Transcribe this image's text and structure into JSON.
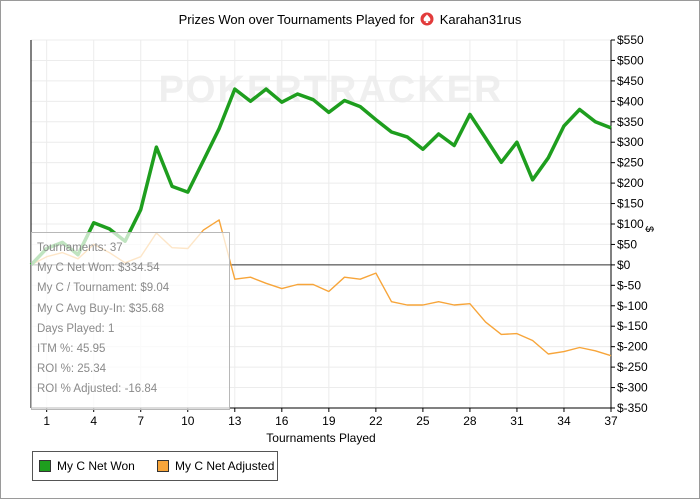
{
  "chart_data": {
    "type": "line",
    "title_prefix": "Prizes Won over Tournaments Played for",
    "player_name": "Karahan31rus",
    "xlabel": "Tournaments Played",
    "ylabel": "$",
    "xlim": [
      0,
      37
    ],
    "ylim": [
      -350,
      550
    ],
    "x_ticks": [
      1,
      4,
      7,
      10,
      13,
      16,
      19,
      22,
      25,
      28,
      31,
      34,
      37
    ],
    "y_ticks": [
      550,
      500,
      450,
      400,
      350,
      300,
      250,
      200,
      150,
      100,
      50,
      0,
      -50,
      -100,
      -150,
      -200,
      -250,
      -300,
      -350
    ],
    "y_tick_labels": [
      "$550",
      "$500",
      "$450",
      "$400",
      "$350",
      "$300",
      "$250",
      "$200",
      "$150",
      "$100",
      "$50",
      "$0",
      "$-50",
      "$-100",
      "$-150",
      "$-200",
      "$-250",
      "$-300",
      "$-350"
    ],
    "watermark": "POKERTRACKER",
    "series": [
      {
        "name": "My C Net Won",
        "color": "#1e9e1e",
        "x": [
          0,
          1,
          2,
          3,
          4,
          5,
          6,
          7,
          8,
          9,
          10,
          11,
          12,
          13,
          14,
          15,
          16,
          17,
          18,
          19,
          20,
          21,
          22,
          23,
          24,
          25,
          26,
          27,
          28,
          29,
          30,
          31,
          32,
          33,
          34,
          35,
          36,
          37
        ],
        "values": [
          0,
          40,
          55,
          25,
          103,
          88,
          58,
          135,
          288,
          192,
          178,
          255,
          333,
          430,
          400,
          430,
          398,
          418,
          404,
          373,
          402,
          387,
          355,
          325,
          313,
          283,
          320,
          292,
          368,
          310,
          251,
          300,
          208,
          262,
          340,
          380,
          350,
          335
        ]
      },
      {
        "name": "My C Net Adjusted",
        "color": "#f7a53a",
        "x": [
          0,
          1,
          2,
          3,
          4,
          5,
          6,
          7,
          8,
          9,
          10,
          11,
          12,
          13,
          14,
          15,
          16,
          17,
          18,
          19,
          20,
          21,
          22,
          23,
          24,
          25,
          26,
          27,
          28,
          29,
          30,
          31,
          32,
          33,
          34,
          35,
          36,
          37
        ],
        "values": [
          0,
          20,
          30,
          15,
          50,
          30,
          5,
          20,
          78,
          42,
          40,
          85,
          110,
          -35,
          -30,
          -45,
          -58,
          -48,
          -48,
          -65,
          -30,
          -35,
          -20,
          -90,
          -98,
          -98,
          -90,
          -98,
          -95,
          -140,
          -170,
          -168,
          -185,
          -218,
          -212,
          -202,
          -210,
          -222
        ]
      }
    ],
    "legend_placement": "bottom-left",
    "stats": [
      "Tournaments: 37",
      "My C Net Won: $334.54",
      "My C / Tournament: $9.04",
      "My C Avg Buy-In: $35.68",
      "Days Played: 1",
      "ITM %: 45.95",
      "ROI %: 25.34",
      "ROI % Adjusted: -16.84"
    ]
  }
}
